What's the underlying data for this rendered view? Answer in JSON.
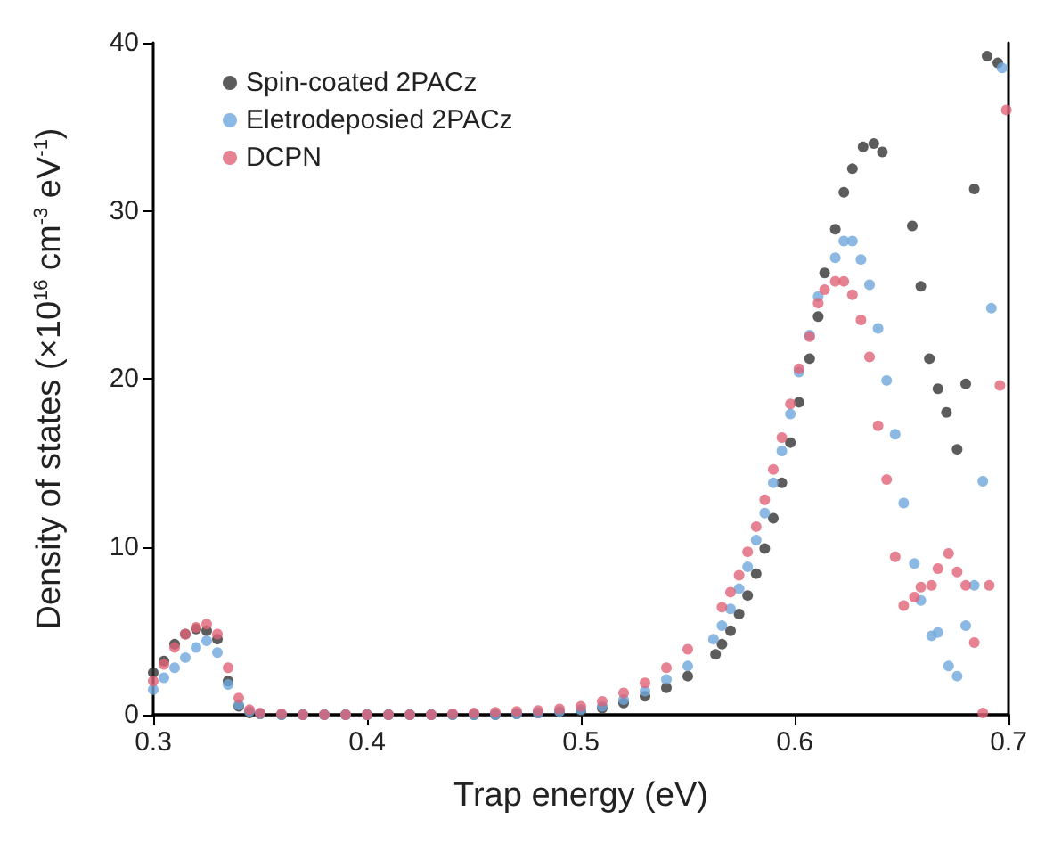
{
  "chart_data": {
    "type": "scatter",
    "xlabel": "Trap energy (eV)",
    "ylabel": "Density of states (×10$^{16}$ cm$^{-3}$ eV$^{-1}$)",
    "xlim": [
      0.3,
      0.7
    ],
    "xticks": [
      0.3,
      0.4,
      0.5,
      0.6,
      0.7
    ],
    "ylim": [
      0,
      40
    ],
    "yticks": [
      0,
      10,
      20,
      30,
      40
    ],
    "grid": false,
    "legend": "top left",
    "marker": "circle",
    "series": [
      {
        "name": "Spin-coated 2PACz",
        "color": "#333333",
        "x": [
          0.3,
          0.305,
          0.31,
          0.315,
          0.32,
          0.325,
          0.33,
          0.335,
          0.34,
          0.345,
          0.35,
          0.36,
          0.37,
          0.38,
          0.39,
          0.4,
          0.41,
          0.42,
          0.43,
          0.44,
          0.45,
          0.46,
          0.47,
          0.48,
          0.49,
          0.5,
          0.51,
          0.52,
          0.53,
          0.54,
          0.55,
          0.563,
          0.566,
          0.57,
          0.574,
          0.578,
          0.582,
          0.586,
          0.59,
          0.594,
          0.598,
          0.602,
          0.607,
          0.611,
          0.614,
          0.619,
          0.623,
          0.627,
          0.632,
          0.637,
          0.641,
          0.655,
          0.659,
          0.663,
          0.667,
          0.671,
          0.676,
          0.68,
          0.684,
          0.69,
          0.695
        ],
        "values": [
          2.5,
          3.2,
          4.2,
          4.8,
          5.1,
          5.0,
          4.5,
          2.0,
          0.5,
          0.1,
          0.05,
          0,
          0,
          0,
          0,
          0,
          0,
          0,
          0,
          0,
          0,
          0,
          0.05,
          0.1,
          0.15,
          0.2,
          0.4,
          0.7,
          1.1,
          1.6,
          2.3,
          3.6,
          4.2,
          5.0,
          6.0,
          7.1,
          8.4,
          9.9,
          11.7,
          13.8,
          16.2,
          18.6,
          21.2,
          23.7,
          26.3,
          28.9,
          31.1,
          32.5,
          33.8,
          34.0,
          33.5,
          29.1,
          25.5,
          21.2,
          19.4,
          18.0,
          15.8,
          19.7,
          31.3,
          39.2,
          38.8
        ]
      },
      {
        "name": "Eletrodeposied 2PACz",
        "color": "#6fa8dc",
        "x": [
          0.3,
          0.305,
          0.31,
          0.315,
          0.32,
          0.325,
          0.33,
          0.335,
          0.34,
          0.345,
          0.35,
          0.36,
          0.37,
          0.38,
          0.39,
          0.4,
          0.41,
          0.42,
          0.43,
          0.44,
          0.45,
          0.46,
          0.47,
          0.48,
          0.49,
          0.5,
          0.51,
          0.52,
          0.53,
          0.54,
          0.55,
          0.562,
          0.566,
          0.57,
          0.574,
          0.578,
          0.582,
          0.586,
          0.59,
          0.594,
          0.598,
          0.602,
          0.607,
          0.611,
          0.619,
          0.623,
          0.627,
          0.631,
          0.635,
          0.639,
          0.643,
          0.647,
          0.651,
          0.656,
          0.659,
          0.664,
          0.667,
          0.672,
          0.676,
          0.68,
          0.684,
          0.688,
          0.692,
          0.697
        ],
        "values": [
          1.5,
          2.2,
          2.8,
          3.4,
          4.0,
          4.4,
          3.7,
          1.8,
          0.6,
          0.2,
          0.05,
          0,
          0,
          0,
          0,
          0,
          0,
          0,
          0,
          0,
          0,
          0,
          0.05,
          0.1,
          0.2,
          0.3,
          0.5,
          0.9,
          1.4,
          2.1,
          2.9,
          4.5,
          5.3,
          6.3,
          7.5,
          8.8,
          10.4,
          12.0,
          13.8,
          15.7,
          17.9,
          20.4,
          22.6,
          24.9,
          27.2,
          28.2,
          28.2,
          27.1,
          25.6,
          23.0,
          19.9,
          16.7,
          12.6,
          9.0,
          6.8,
          4.7,
          4.9,
          2.9,
          2.3,
          5.3,
          7.7,
          13.9,
          24.2,
          38.5
        ]
      },
      {
        "name": "DCPN",
        "color": "#e06377",
        "x": [
          0.3,
          0.305,
          0.31,
          0.315,
          0.32,
          0.325,
          0.33,
          0.335,
          0.34,
          0.345,
          0.35,
          0.36,
          0.37,
          0.38,
          0.39,
          0.4,
          0.41,
          0.42,
          0.43,
          0.44,
          0.45,
          0.46,
          0.47,
          0.48,
          0.49,
          0.5,
          0.51,
          0.52,
          0.53,
          0.54,
          0.55,
          0.566,
          0.57,
          0.574,
          0.578,
          0.582,
          0.586,
          0.59,
          0.594,
          0.598,
          0.602,
          0.607,
          0.611,
          0.614,
          0.619,
          0.623,
          0.627,
          0.631,
          0.635,
          0.639,
          0.643,
          0.647,
          0.651,
          0.656,
          0.659,
          0.664,
          0.667,
          0.672,
          0.676,
          0.68,
          0.684,
          0.688,
          0.691,
          0.696,
          0.699
        ],
        "values": [
          2.0,
          3.0,
          4.0,
          4.8,
          5.2,
          5.4,
          4.8,
          2.8,
          1.0,
          0.3,
          0.1,
          0.05,
          0,
          0,
          0,
          0,
          0,
          0,
          0,
          0.05,
          0.1,
          0.15,
          0.2,
          0.25,
          0.35,
          0.5,
          0.8,
          1.3,
          1.9,
          2.8,
          3.9,
          6.4,
          7.3,
          8.3,
          9.7,
          11.2,
          12.8,
          14.6,
          16.5,
          18.5,
          20.6,
          22.5,
          24.5,
          25.3,
          25.8,
          25.8,
          25.0,
          23.5,
          21.3,
          17.2,
          14.0,
          9.4,
          6.5,
          7.0,
          7.6,
          7.7,
          8.7,
          9.6,
          8.5,
          7.7,
          4.3,
          0.1,
          7.7,
          19.6,
          36.0
        ]
      }
    ]
  }
}
